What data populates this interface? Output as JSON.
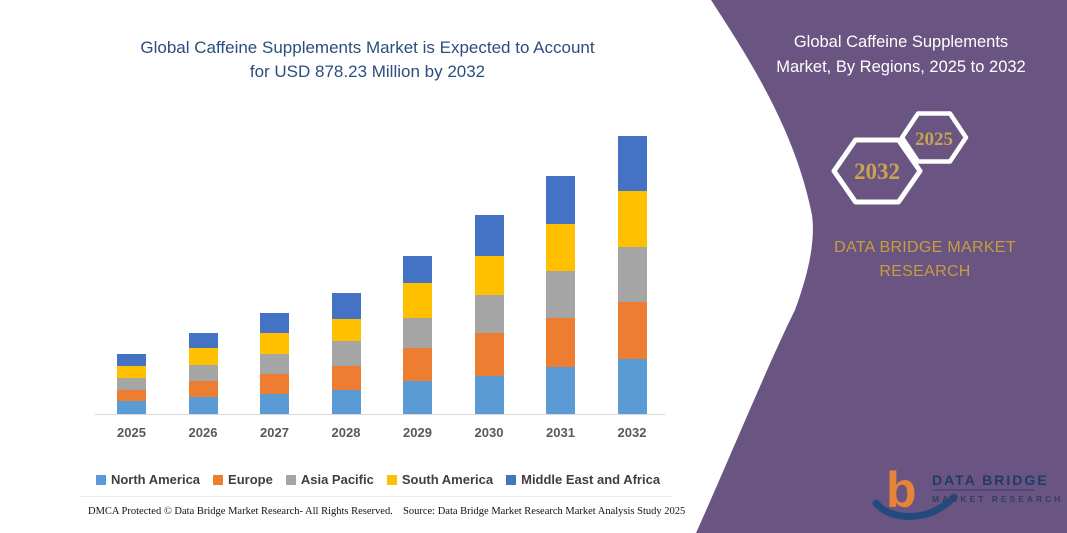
{
  "header": {
    "title_line1": "Global Caffeine Supplements Market is Expected to Account",
    "title_line2": "for USD 878.23 Million by 2032"
  },
  "chart_data": {
    "type": "bar",
    "stacked": true,
    "unit": "USD Million",
    "title": "Global Caffeine Supplements Market is Expected to Account for USD 878.23 Million by 2032",
    "xlabel": "",
    "ylabel": "",
    "ylim": [
      0,
      900
    ],
    "y_axis_visible": false,
    "grid": false,
    "legend_position": "bottom",
    "categories": [
      "2025",
      "2026",
      "2027",
      "2028",
      "2029",
      "2030",
      "2031",
      "2032"
    ],
    "series": [
      {
        "name": "North America",
        "color": "#5B9BD5",
        "values": [
          40,
          54,
          63,
          77,
          103,
          121,
          149,
          175
        ]
      },
      {
        "name": "Europe",
        "color": "#ED7D31",
        "values": [
          37,
          50,
          63,
          76,
          105,
          135,
          155,
          178
        ]
      },
      {
        "name": "Asia Pacific",
        "color": "#A5A5A5",
        "values": [
          37,
          50,
          64,
          77,
          95,
          121,
          148,
          175
        ]
      },
      {
        "name": "South America",
        "color": "#FFC000",
        "values": [
          39,
          54,
          65,
          71,
          111,
          123,
          148,
          178
        ]
      },
      {
        "name": "Middle East and Africa",
        "color": "#4472C4",
        "values": [
          37,
          49,
          64,
          80,
          86,
          128,
          152,
          172
        ]
      }
    ],
    "totals_by_year": [
      190,
      257,
      319,
      381,
      500,
      628,
      752,
      878.23
    ]
  },
  "right_panel": {
    "title_line1": "Global Caffeine Supplements",
    "title_line2": "Market, By Regions, 2025 to 2032",
    "hexagons": [
      {
        "year": "2032"
      },
      {
        "year": "2025"
      }
    ],
    "brand_line1": "DATA BRIDGE MARKET",
    "brand_line2": "RESEARCH",
    "logo": {
      "monogram": "b",
      "name": "DATA BRIDGE",
      "tagline": "MARKET RESEARCH"
    }
  },
  "footer": {
    "dmca": "DMCA Protected © Data Bridge Market Research-  All Rights Reserved.",
    "source": "Source: Data Bridge Market Research  Market Analysis Study 2025"
  },
  "colors": {
    "panel_purple": "#6A5481",
    "title_blue": "#2B4E7E",
    "brand_gold": "#C69D3F",
    "hexagon_year_gold": "#C8A351",
    "axis_label_gray": "#595959",
    "logo_orange": "#E8833A",
    "logo_navy": "#1F3B66"
  }
}
